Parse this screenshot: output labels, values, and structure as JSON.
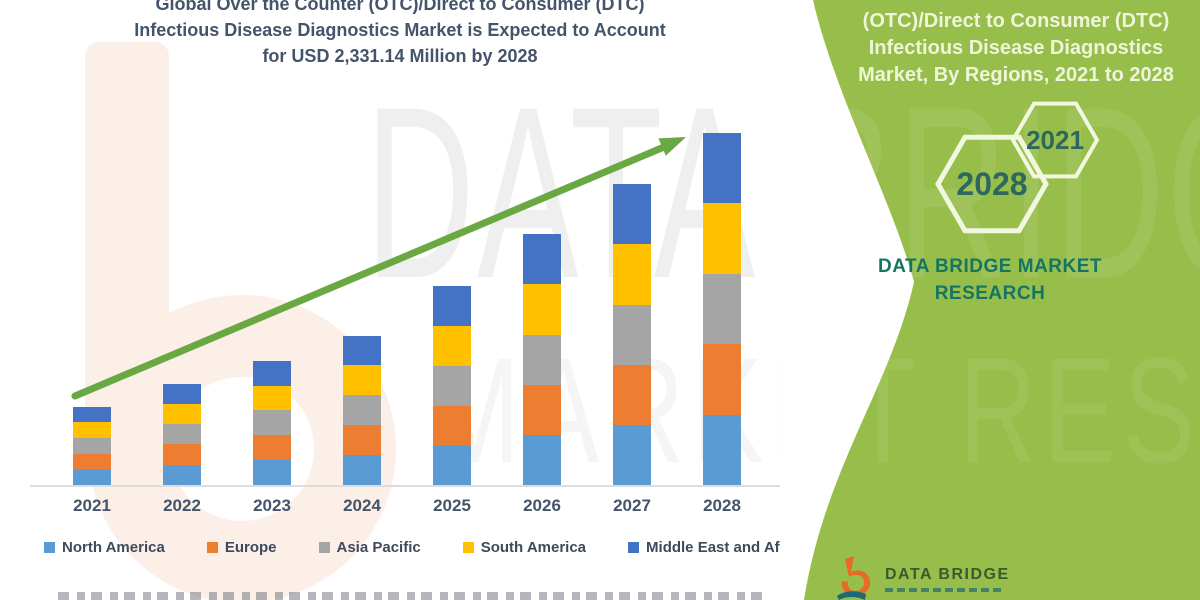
{
  "title": {
    "lines": [
      "Global Over the Counter (OTC)/Direct to Consumer (DTC)",
      "Infectious Disease Diagnostics Market is Expected to Account",
      "for USD 2,331.14 Million by 2028"
    ]
  },
  "watermark": {
    "line1": "DATA BRIDGE",
    "line2": "MARKET RESEARCH"
  },
  "chart_data": {
    "type": "bar",
    "stacked": true,
    "title": "Global Over the Counter (OTC)/Direct to Consumer (DTC) Infectious Disease Diagnostics Market, By Regions, 2021 to 2028",
    "unit": "USD Million",
    "categories": [
      "2021",
      "2022",
      "2023",
      "2024",
      "2025",
      "2026",
      "2027",
      "2028"
    ],
    "totals": [
      518,
      671,
      823,
      990,
      1315,
      1660,
      1992,
      2331.14
    ],
    "series": [
      {
        "name": "North America",
        "color": "#5B9BD5",
        "values": [
          103.6,
          134.2,
          164.6,
          198.0,
          263.0,
          332.0,
          398.4,
          466.2
        ]
      },
      {
        "name": "Europe",
        "color": "#ED7D31",
        "values": [
          103.6,
          134.2,
          164.6,
          198.0,
          263.0,
          332.0,
          398.4,
          466.2
        ]
      },
      {
        "name": "Asia Pacific",
        "color": "#A5A5A5",
        "values": [
          103.6,
          134.2,
          164.6,
          198.0,
          263.0,
          332.0,
          398.4,
          466.2
        ]
      },
      {
        "name": "South America",
        "color": "#FFC000",
        "values": [
          103.6,
          134.2,
          164.6,
          198.0,
          263.0,
          332.0,
          398.4,
          466.2
        ]
      },
      {
        "name": "Middle East and Africa",
        "color": "#4472C4",
        "values": [
          103.6,
          134.2,
          164.6,
          198.0,
          263.0,
          332.0,
          398.4,
          466.2
        ]
      }
    ],
    "ylim": [
      0,
      2400
    ],
    "grid": false,
    "legend_position": "bottom",
    "annotations": [
      "green upward trend arrow from 2021 to 2028"
    ],
    "key_value": "USD 2,331.14 Million by 2028",
    "accent_color": "#6AA842"
  },
  "panel": {
    "heading_lines": [
      "(OTC)/Direct to Consumer (DTC)",
      "Infectious Disease Diagnostics",
      "Market, By Regions, 2021 to 2028"
    ],
    "hexagons": [
      "2028",
      "2021"
    ],
    "brand_lines": [
      "DATA BRIDGE MARKET",
      "RESEARCH"
    ],
    "logo_text": "DATA BRIDGE",
    "colors": {
      "background": "#97BE4B",
      "heading_text": "#EEF5D9",
      "hexagon_stroke": "#F2F7DF",
      "hexagon_text": "#2E675C",
      "brand_text": "#167560",
      "logo_orange": "#E96A24",
      "logo_teal": "#1D6A74"
    }
  }
}
